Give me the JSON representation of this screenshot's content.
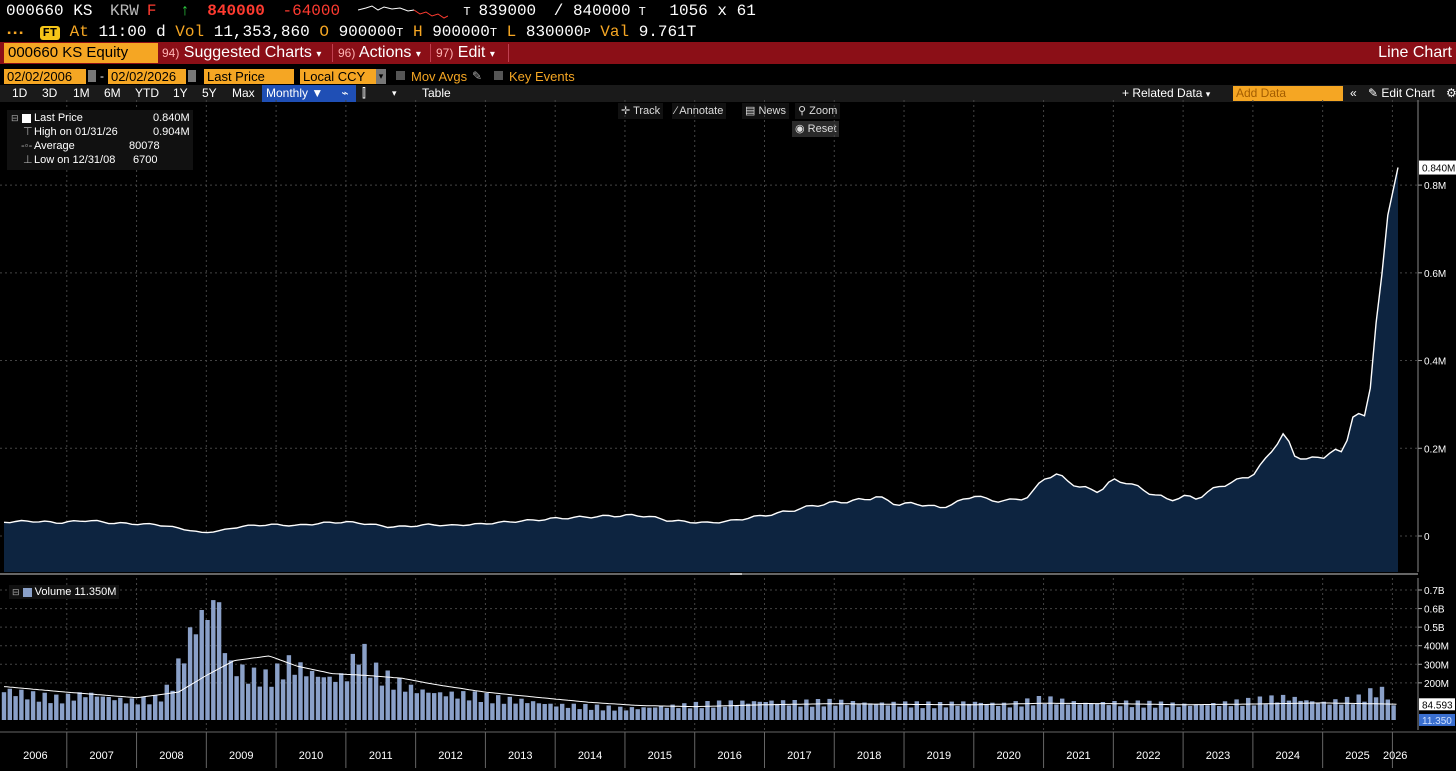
{
  "quote": {
    "ticker": "000660 KS",
    "currency": "KRW",
    "currency_flag": "F",
    "arrow": "↑",
    "last": "840000",
    "change": "-64000",
    "trade_price": "839000",
    "trade_flag": "T",
    "ask_price": "840000",
    "ask_flag": "T",
    "size": "1056 x 61",
    "at_label": "At",
    "time": "11:00",
    "time_flag": "d",
    "vol_label": "Vol",
    "volume": "11,353,860",
    "open_label": "O",
    "open": "900000",
    "open_flag": "T",
    "high_label": "H",
    "high": "900000",
    "high_flag": "T",
    "low_label": "L",
    "low": "830000",
    "low_flag": "P",
    "val_label": "Val",
    "value": "9.761T"
  },
  "menubar": {
    "security": "000660 KS Equity",
    "menus": [
      {
        "num": "94)",
        "label": "Suggested Charts"
      },
      {
        "num": "96)",
        "label": "Actions"
      },
      {
        "num": "97)",
        "label": "Edit"
      }
    ],
    "chart_type": "Line Chart"
  },
  "settings": {
    "start_date": "02/02/2006",
    "end_date": "02/02/2026",
    "field": "Last Price",
    "currency": "Local CCY",
    "mov_avgs": "Mov Avgs",
    "key_events": "Key Events"
  },
  "toolbar": {
    "ranges": [
      "1D",
      "3D",
      "1M",
      "6M",
      "YTD",
      "1Y",
      "5Y",
      "Max"
    ],
    "frequency": "Monthly",
    "table": "Table",
    "related": "Related Data",
    "add_placeholder": "Add Data",
    "edit_chart": "Edit Chart"
  },
  "tools": {
    "track": "Track",
    "annotate": "Annotate",
    "news": "News",
    "zoom": "Zoom",
    "reset": "Reset"
  },
  "legend": {
    "series": "Last Price",
    "series_value": "0.840M",
    "high_label": "High on 01/31/26",
    "high_value": "0.904M",
    "avg_label": "Average",
    "avg_value": "80078",
    "low_label": "Low on 12/31/08",
    "low_value": "6700",
    "volume_label": "Volume 11.350M"
  },
  "colors": {
    "price_line": "#ffffff",
    "price_fill": "#0d2440",
    "volume_bar": "#8aa0c8",
    "accent": "#f5a623",
    "menubar": "#8b0f17"
  },
  "chart_data": [
    {
      "type": "area",
      "series": [
        {
          "name": "Last Price"
        }
      ],
      "ylim": [
        0,
        0.95
      ],
      "yticks": [
        0,
        0.2,
        0.4,
        0.6,
        0.8
      ],
      "ytick_labels": [
        "0",
        "0.2M",
        "0.4M",
        "0.6M",
        "0.8M"
      ],
      "last_label": "0.840M",
      "x_start": 2006.1,
      "x_end": 2026.08,
      "price_keypoints": [
        [
          2006.1,
          0.032
        ],
        [
          2006.5,
          0.034
        ],
        [
          2006.9,
          0.03
        ],
        [
          2007.3,
          0.036
        ],
        [
          2007.6,
          0.03
        ],
        [
          2007.9,
          0.028
        ],
        [
          2008.3,
          0.026
        ],
        [
          2008.6,
          0.018
        ],
        [
          2008.95,
          0.007
        ],
        [
          2009.2,
          0.012
        ],
        [
          2009.5,
          0.022
        ],
        [
          2009.9,
          0.026
        ],
        [
          2010.3,
          0.024
        ],
        [
          2010.7,
          0.03
        ],
        [
          2011.0,
          0.032
        ],
        [
          2011.3,
          0.028
        ],
        [
          2011.6,
          0.021
        ],
        [
          2011.9,
          0.022
        ],
        [
          2012.2,
          0.026
        ],
        [
          2012.5,
          0.024
        ],
        [
          2012.9,
          0.027
        ],
        [
          2013.3,
          0.032
        ],
        [
          2013.7,
          0.036
        ],
        [
          2014.0,
          0.04
        ],
        [
          2014.4,
          0.043
        ],
        [
          2014.7,
          0.045
        ],
        [
          2015.0,
          0.047
        ],
        [
          2015.3,
          0.046
        ],
        [
          2015.6,
          0.036
        ],
        [
          2015.9,
          0.032
        ],
        [
          2016.2,
          0.03
        ],
        [
          2016.5,
          0.034
        ],
        [
          2016.8,
          0.042
        ],
        [
          2017.2,
          0.052
        ],
        [
          2017.5,
          0.062
        ],
        [
          2017.8,
          0.072
        ],
        [
          2018.1,
          0.078
        ],
        [
          2018.4,
          0.082
        ],
        [
          2018.6,
          0.09
        ],
        [
          2018.9,
          0.072
        ],
        [
          2019.2,
          0.074
        ],
        [
          2019.5,
          0.064
        ],
        [
          2019.8,
          0.078
        ],
        [
          2020.0,
          0.094
        ],
        [
          2020.2,
          0.082
        ],
        [
          2020.5,
          0.08
        ],
        [
          2020.8,
          0.09
        ],
        [
          2021.0,
          0.132
        ],
        [
          2021.2,
          0.14
        ],
        [
          2021.5,
          0.112
        ],
        [
          2021.8,
          0.102
        ],
        [
          2022.0,
          0.128
        ],
        [
          2022.2,
          0.122
        ],
        [
          2022.5,
          0.1
        ],
        [
          2022.8,
          0.082
        ],
        [
          2023.0,
          0.09
        ],
        [
          2023.2,
          0.086
        ],
        [
          2023.5,
          0.112
        ],
        [
          2023.8,
          0.128
        ],
        [
          2024.0,
          0.14
        ],
        [
          2024.2,
          0.178
        ],
        [
          2024.45,
          0.236
        ],
        [
          2024.6,
          0.182
        ],
        [
          2024.8,
          0.176
        ],
        [
          2025.0,
          0.178
        ],
        [
          2025.15,
          0.198
        ],
        [
          2025.3,
          0.186
        ],
        [
          2025.45,
          0.286
        ],
        [
          2025.6,
          0.27
        ],
        [
          2025.7,
          0.35
        ],
        [
          2025.8,
          0.56
        ],
        [
          2025.9,
          0.64
        ],
        [
          2026.0,
          0.904
        ],
        [
          2026.08,
          0.84
        ]
      ],
      "x_ticks": [
        "2006",
        "2007",
        "2008",
        "2009",
        "2010",
        "2011",
        "2012",
        "2013",
        "2014",
        "2015",
        "2016",
        "2017",
        "2018",
        "2019",
        "2020",
        "2021",
        "2022",
        "2023",
        "2024",
        "2025",
        "2026"
      ]
    },
    {
      "type": "bar",
      "series": [
        {
          "name": "Volume"
        }
      ],
      "ylim": [
        0,
        800
      ],
      "ytick_labels": [
        "0.7B",
        "0.6B",
        "0.5B",
        "400M",
        "300M",
        "200M"
      ],
      "ytick_values": [
        700,
        600,
        500,
        400,
        300,
        200
      ],
      "last_label": "11.350",
      "ma_label": "84.593",
      "volume_keypoints": [
        [
          2006.1,
          160
        ],
        [
          2006.5,
          130
        ],
        [
          2006.9,
          110
        ],
        [
          2007.3,
          140
        ],
        [
          2007.6,
          120
        ],
        [
          2007.9,
          100
        ],
        [
          2008.3,
          110
        ],
        [
          2008.5,
          180
        ],
        [
          2008.7,
          380
        ],
        [
          2008.9,
          560
        ],
        [
          2009.0,
          540
        ],
        [
          2009.15,
          700
        ],
        [
          2009.3,
          300
        ],
        [
          2009.6,
          240
        ],
        [
          2009.9,
          220
        ],
        [
          2010.2,
          300
        ],
        [
          2010.5,
          250
        ],
        [
          2010.8,
          220
        ],
        [
          2011.0,
          230
        ],
        [
          2011.2,
          380
        ],
        [
          2011.4,
          260
        ],
        [
          2011.7,
          200
        ],
        [
          2012.0,
          160
        ],
        [
          2012.4,
          140
        ],
        [
          2012.8,
          130
        ],
        [
          2013.2,
          110
        ],
        [
          2013.6,
          100
        ],
        [
          2014.0,
          80
        ],
        [
          2014.5,
          70
        ],
        [
          2015.0,
          60
        ],
        [
          2015.5,
          70
        ],
        [
          2016.0,
          80
        ],
        [
          2016.5,
          90
        ],
        [
          2017.0,
          100
        ],
        [
          2017.5,
          90
        ],
        [
          2018.0,
          95
        ],
        [
          2018.5,
          90
        ],
        [
          2019.0,
          85
        ],
        [
          2019.5,
          80
        ],
        [
          2020.0,
          95
        ],
        [
          2020.5,
          80
        ],
        [
          2021.0,
          110
        ],
        [
          2021.5,
          90
        ],
        [
          2022.0,
          90
        ],
        [
          2022.5,
          85
        ],
        [
          2023.0,
          80
        ],
        [
          2023.5,
          85
        ],
        [
          2024.0,
          100
        ],
        [
          2024.5,
          120
        ],
        [
          2025.0,
          90
        ],
        [
          2025.5,
          110
        ],
        [
          2025.8,
          160
        ],
        [
          2025.95,
          130
        ],
        [
          2026.08,
          11
        ]
      ],
      "ma_keypoints": [
        [
          2006.1,
          180
        ],
        [
          2007.0,
          150
        ],
        [
          2008.0,
          120
        ],
        [
          2008.6,
          150
        ],
        [
          2009.0,
          240
        ],
        [
          2009.4,
          320
        ],
        [
          2009.9,
          345
        ],
        [
          2010.3,
          290
        ],
        [
          2010.8,
          250
        ],
        [
          2011.3,
          240
        ],
        [
          2011.8,
          225
        ],
        [
          2012.3,
          190
        ],
        [
          2013.0,
          150
        ],
        [
          2013.8,
          120
        ],
        [
          2014.5,
          95
        ],
        [
          2015.2,
          78
        ],
        [
          2016.0,
          72
        ],
        [
          2017.0,
          82
        ],
        [
          2018.0,
          88
        ],
        [
          2019.0,
          84
        ],
        [
          2020.0,
          82
        ],
        [
          2021.0,
          90
        ],
        [
          2022.0,
          88
        ],
        [
          2023.0,
          82
        ],
        [
          2024.0,
          86
        ],
        [
          2025.0,
          92
        ],
        [
          2026.08,
          85
        ]
      ]
    }
  ]
}
